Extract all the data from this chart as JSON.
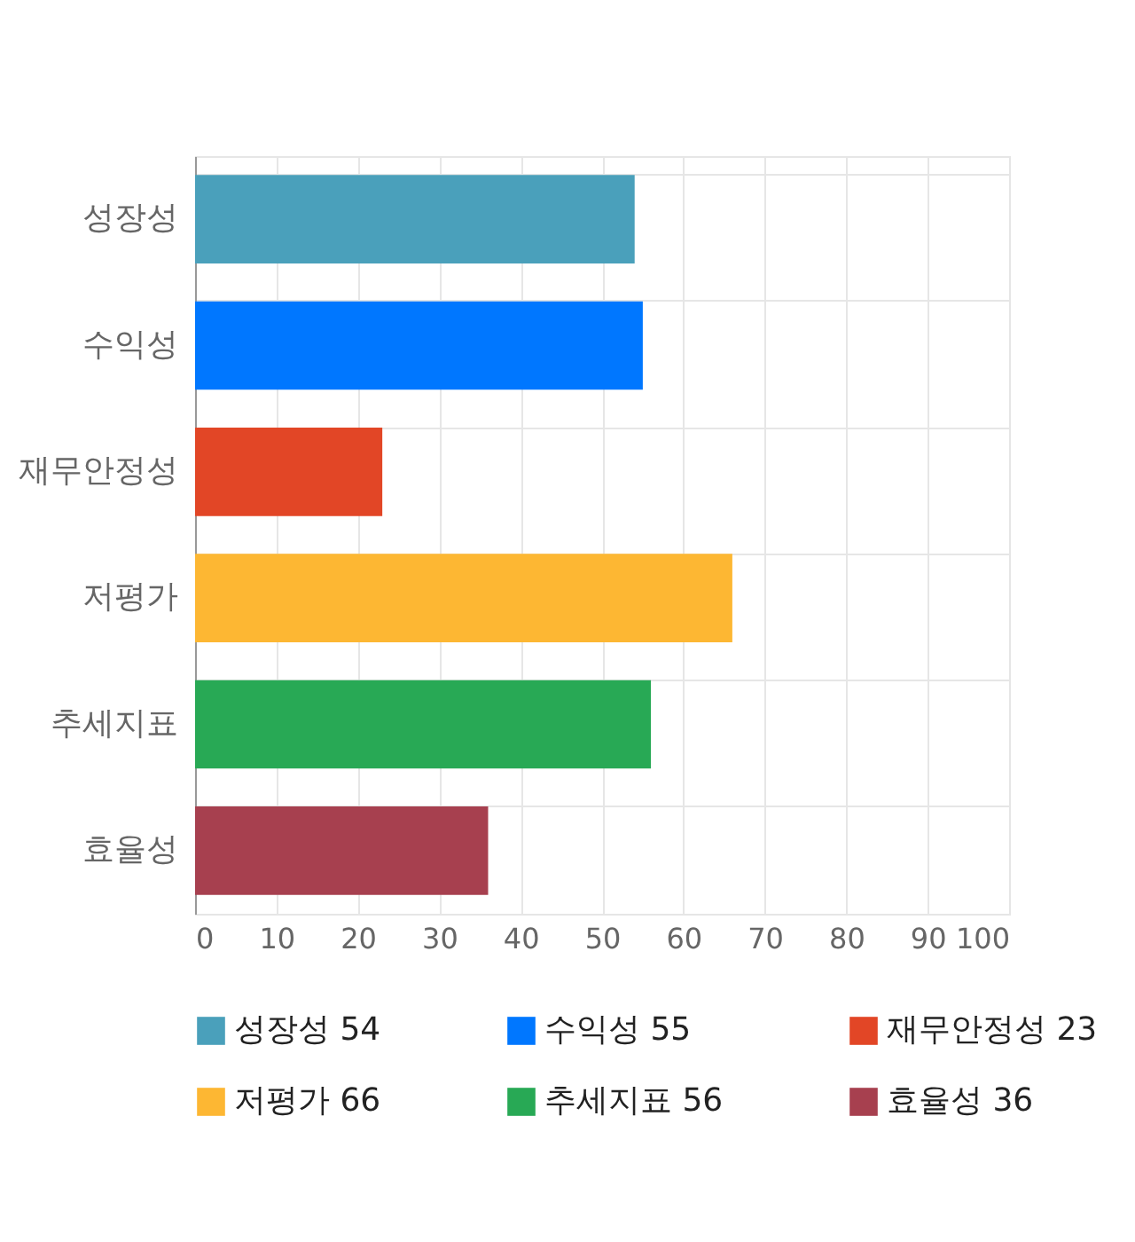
{
  "chart_data": {
    "type": "bar",
    "orientation": "horizontal",
    "categories": [
      "성장성",
      "수익성",
      "재무안정성",
      "저평가",
      "추세지표",
      "효율성"
    ],
    "series": [
      {
        "name": "성장성 54",
        "color": "#4aa0bb",
        "values": [
          54,
          null,
          null,
          null,
          null,
          null
        ]
      },
      {
        "name": "수익성 55",
        "color": "#0077ff",
        "values": [
          null,
          55,
          null,
          null,
          null,
          null
        ]
      },
      {
        "name": "재무안정성 23",
        "color": "#e24626",
        "values": [
          null,
          null,
          23,
          null,
          null,
          null
        ]
      },
      {
        "name": "저평가 66",
        "color": "#fdb733",
        "values": [
          null,
          null,
          null,
          66,
          null,
          null
        ]
      },
      {
        "name": "추세지표 56",
        "color": "#28a955",
        "values": [
          null,
          null,
          null,
          null,
          56,
          null
        ]
      },
      {
        "name": "효율성 36",
        "color": "#a7404f",
        "values": [
          null,
          null,
          null,
          null,
          null,
          36
        ]
      }
    ],
    "xlim": [
      0,
      100
    ],
    "xticks": [
      0,
      10,
      20,
      30,
      40,
      50,
      60,
      70,
      80,
      90,
      100
    ],
    "grid": true,
    "legend": "bottom"
  }
}
